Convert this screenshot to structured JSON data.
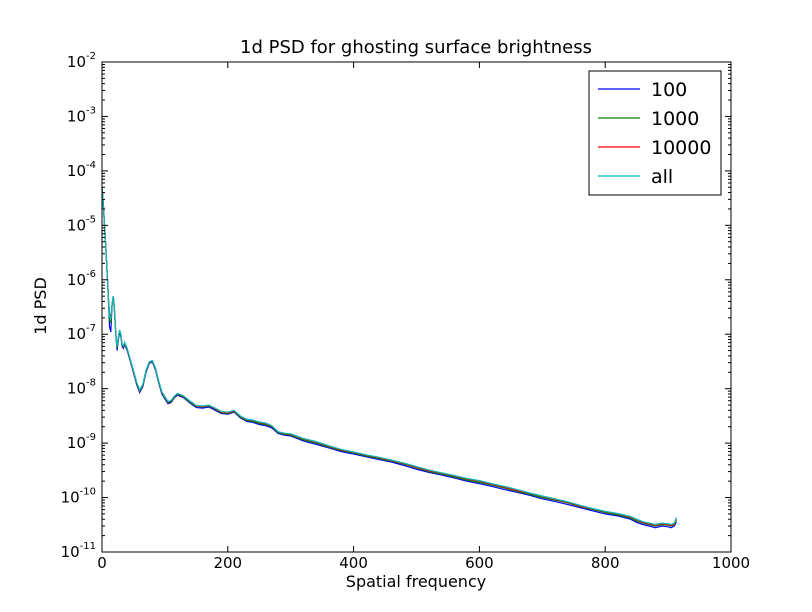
{
  "chart_data": {
    "type": "line",
    "title": "1d PSD for ghosting surface brightness",
    "xlabel": "Spatial frequency",
    "ylabel": "1d PSD",
    "xlim": [
      0,
      1000
    ],
    "ylim": [
      1e-11,
      0.01
    ],
    "yscale": "log",
    "grid": false,
    "legend_position": "top-right",
    "x_ticks": [
      {
        "value": 0,
        "label": "0"
      },
      {
        "value": 200,
        "label": "200"
      },
      {
        "value": 400,
        "label": "400"
      },
      {
        "value": 600,
        "label": "600"
      },
      {
        "value": 800,
        "label": "800"
      },
      {
        "value": 1000,
        "label": "1000"
      }
    ],
    "y_ticks": [
      {
        "value": 1e-11,
        "base": "10",
        "exp": "-11"
      },
      {
        "value": 1e-10,
        "base": "10",
        "exp": "-10"
      },
      {
        "value": 1e-09,
        "base": "10",
        "exp": "-9"
      },
      {
        "value": 1e-08,
        "base": "10",
        "exp": "-8"
      },
      {
        "value": 1e-07,
        "base": "10",
        "exp": "-7"
      },
      {
        "value": 1e-06,
        "base": "10",
        "exp": "-6"
      },
      {
        "value": 1e-05,
        "base": "10",
        "exp": "-5"
      },
      {
        "value": 0.0001,
        "base": "10",
        "exp": "-4"
      },
      {
        "value": 0.001,
        "base": "10",
        "exp": "-3"
      },
      {
        "value": 0.01,
        "base": "10",
        "exp": "-2"
      }
    ],
    "x": [
      0,
      2,
      4,
      6,
      8,
      10,
      12,
      14,
      16,
      18,
      20,
      22,
      24,
      26,
      28,
      30,
      32,
      34,
      36,
      40,
      45,
      50,
      55,
      60,
      65,
      70,
      75,
      80,
      85,
      90,
      95,
      100,
      105,
      110,
      115,
      120,
      125,
      130,
      140,
      150,
      160,
      170,
      180,
      190,
      200,
      210,
      220,
      230,
      240,
      250,
      260,
      270,
      280,
      290,
      300,
      320,
      340,
      360,
      380,
      400,
      420,
      440,
      460,
      480,
      500,
      520,
      540,
      560,
      580,
      600,
      620,
      640,
      660,
      680,
      700,
      720,
      740,
      760,
      780,
      800,
      820,
      840,
      850,
      860,
      870,
      880,
      890,
      900,
      905,
      910,
      913
    ],
    "series": [
      {
        "name": "100",
        "color": "#0000ff",
        "values": [
          5e-05,
          2.5e-05,
          1e-05,
          4e-06,
          1.5e-06,
          5e-07,
          1.4e-07,
          1.1e-07,
          3.5e-07,
          5e-07,
          2.5e-07,
          1e-07,
          5e-08,
          8e-08,
          1.1e-07,
          9e-08,
          6e-08,
          5.5e-08,
          6.5e-08,
          5e-08,
          3.2e-08,
          2e-08,
          1.2e-08,
          8.5e-09,
          1.1e-08,
          2e-08,
          2.9e-08,
          3.1e-08,
          2.2e-08,
          1.3e-08,
          8e-09,
          6.5e-09,
          5.3e-09,
          5.6e-09,
          6.8e-09,
          7.6e-09,
          7.2e-09,
          6.8e-09,
          5.4e-09,
          4.5e-09,
          4.4e-09,
          4.6e-09,
          4e-09,
          3.5e-09,
          3.4e-09,
          3.7e-09,
          2.9e-09,
          2.5e-09,
          2.4e-09,
          2.2e-09,
          2.1e-09,
          1.9e-09,
          1.5e-09,
          1.4e-09,
          1.35e-09,
          1.1e-09,
          9.5e-10,
          8.2e-10,
          7e-10,
          6.3e-10,
          5.6e-10,
          5e-10,
          4.5e-10,
          3.9e-10,
          3.3e-10,
          2.9e-10,
          2.6e-10,
          2.3e-10,
          2e-10,
          1.8e-10,
          1.6e-10,
          1.4e-10,
          1.25e-10,
          1.1e-10,
          9.5e-11,
          8.5e-11,
          7.5e-11,
          6.5e-11,
          5.7e-11,
          5e-11,
          4.6e-11,
          4e-11,
          3.5e-11,
          3.2e-11,
          3e-11,
          2.8e-11,
          3e-11,
          2.9e-11,
          2.8e-11,
          3e-11,
          3.6e-11
        ]
      },
      {
        "name": "1000",
        "color": "#008000",
        "values": [
          5e-05,
          2.5e-05,
          1e-05,
          4e-06,
          1.5e-06,
          5e-07,
          1.8e-07,
          1.6e-07,
          3.5e-07,
          5e-07,
          2.5e-07,
          1e-07,
          5.5e-08,
          8.5e-08,
          1.15e-07,
          9.5e-08,
          6.3e-08,
          5.8e-08,
          6.8e-08,
          5.2e-08,
          3.3e-08,
          2.1e-08,
          1.25e-08,
          9e-09,
          1.15e-08,
          2.1e-08,
          3e-08,
          3.2e-08,
          2.3e-08,
          1.35e-08,
          8.4e-09,
          6.8e-09,
          5.5e-09,
          5.8e-09,
          7e-09,
          7.9e-09,
          7.5e-09,
          7e-09,
          5.6e-09,
          4.7e-09,
          4.6e-09,
          4.8e-09,
          4.2e-09,
          3.6e-09,
          3.5e-09,
          3.8e-09,
          3e-09,
          2.6e-09,
          2.5e-09,
          2.3e-09,
          2.2e-09,
          2e-09,
          1.55e-09,
          1.45e-09,
          1.4e-09,
          1.15e-09,
          1e-09,
          8.5e-10,
          7.3e-10,
          6.6e-10,
          5.8e-10,
          5.2e-10,
          4.7e-10,
          4.1e-10,
          3.5e-10,
          3e-10,
          2.7e-10,
          2.4e-10,
          2.1e-10,
          1.9e-10,
          1.7e-10,
          1.5e-10,
          1.3e-10,
          1.15e-10,
          1e-10,
          9e-11,
          8e-11,
          6.8e-11,
          6e-11,
          5.3e-11,
          4.8e-11,
          4.2e-11,
          3.7e-11,
          3.4e-11,
          3.2e-11,
          3e-11,
          3.2e-11,
          3.1e-11,
          3e-11,
          3.2e-11,
          3.9e-11
        ]
      },
      {
        "name": "10000",
        "color": "#ff0000",
        "values": [
          5e-05,
          2.5e-05,
          1e-05,
          4e-06,
          1.5e-06,
          5e-07,
          2.4e-07,
          2e-07,
          3.6e-07,
          5e-07,
          2.6e-07,
          1.05e-07,
          5.8e-08,
          8.8e-08,
          1.18e-07,
          9.8e-08,
          6.5e-08,
          6e-08,
          7e-08,
          5.4e-08,
          3.4e-08,
          2.15e-08,
          1.3e-08,
          9.3e-09,
          1.2e-08,
          2.15e-08,
          3.05e-08,
          3.25e-08,
          2.35e-08,
          1.4e-08,
          8.6e-09,
          7e-09,
          5.7e-09,
          6e-09,
          7.2e-09,
          8.1e-09,
          7.7e-09,
          7.2e-09,
          5.8e-09,
          4.8e-09,
          4.7e-09,
          4.9e-09,
          4.3e-09,
          3.7e-09,
          3.6e-09,
          3.9e-09,
          3.1e-09,
          2.7e-09,
          2.6e-09,
          2.4e-09,
          2.3e-09,
          2.05e-09,
          1.6e-09,
          1.5e-09,
          1.45e-09,
          1.2e-09,
          1.05e-09,
          8.8e-10,
          7.5e-10,
          6.8e-10,
          6e-10,
          5.4e-10,
          4.8e-10,
          4.2e-10,
          3.6e-10,
          3.1e-10,
          2.8e-10,
          2.5e-10,
          2.2e-10,
          2e-10,
          1.75e-10,
          1.55e-10,
          1.35e-10,
          1.2e-10,
          1.05e-10,
          9.3e-11,
          8.2e-11,
          7e-11,
          6.2e-11,
          5.5e-11,
          5e-11,
          4.4e-11,
          3.9e-11,
          3.5e-11,
          3.3e-11,
          3.1e-11,
          3.3e-11,
          3.2e-11,
          3.1e-11,
          3.3e-11,
          4.1e-11
        ]
      },
      {
        "name": "all",
        "color": "#00bfbf",
        "values": [
          5e-05,
          2.5e-05,
          1e-05,
          4e-06,
          1.5e-06,
          5e-07,
          2.2e-07,
          1.9e-07,
          3.6e-07,
          5e-07,
          2.6e-07,
          1.05e-07,
          5.9e-08,
          8.9e-08,
          1.2e-07,
          1e-07,
          6.6e-08,
          6.1e-08,
          7.1e-08,
          5.5e-08,
          3.45e-08,
          2.2e-08,
          1.32e-08,
          9.5e-09,
          1.22e-08,
          2.2e-08,
          3.1e-08,
          3.3e-08,
          2.4e-08,
          1.42e-08,
          8.8e-09,
          7.1e-09,
          5.8e-09,
          6.1e-09,
          7.3e-09,
          8.2e-09,
          7.8e-09,
          7.3e-09,
          5.9e-09,
          4.9e-09,
          4.8e-09,
          5e-09,
          4.4e-09,
          3.8e-09,
          3.7e-09,
          4e-09,
          3.15e-09,
          2.75e-09,
          2.65e-09,
          2.45e-09,
          2.35e-09,
          2.1e-09,
          1.62e-09,
          1.52e-09,
          1.48e-09,
          1.22e-09,
          1.07e-09,
          9e-10,
          7.7e-10,
          6.9e-10,
          6.1e-10,
          5.5e-10,
          4.9e-10,
          4.3e-10,
          3.7e-10,
          3.2e-10,
          2.85e-10,
          2.55e-10,
          2.25e-10,
          2.05e-10,
          1.8e-10,
          1.6e-10,
          1.4e-10,
          1.22e-10,
          1.07e-10,
          9.5e-11,
          8.4e-11,
          7.2e-11,
          6.3e-11,
          5.6e-11,
          5.1e-11,
          4.5e-11,
          4e-11,
          3.6e-11,
          3.4e-11,
          3.2e-11,
          3.4e-11,
          3.3e-11,
          3.2e-11,
          3.4e-11,
          4.3e-11
        ]
      }
    ]
  }
}
